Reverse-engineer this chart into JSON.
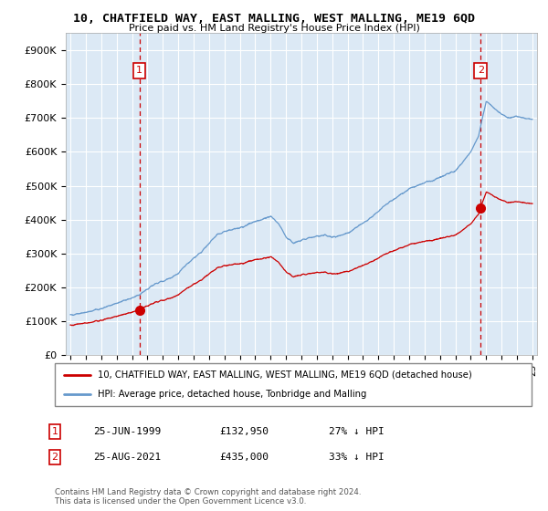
{
  "title": "10, CHATFIELD WAY, EAST MALLING, WEST MALLING, ME19 6QD",
  "subtitle": "Price paid vs. HM Land Registry's House Price Index (HPI)",
  "legend_line1": "10, CHATFIELD WAY, EAST MALLING, WEST MALLING, ME19 6QD (detached house)",
  "legend_line2": "HPI: Average price, detached house, Tonbridge and Malling",
  "annotation1_label": "1",
  "annotation1_date": "25-JUN-1999",
  "annotation1_price": "£132,950",
  "annotation1_hpi": "27% ↓ HPI",
  "annotation2_label": "2",
  "annotation2_date": "25-AUG-2021",
  "annotation2_price": "£435,000",
  "annotation2_hpi": "33% ↓ HPI",
  "footer": "Contains HM Land Registry data © Crown copyright and database right 2024.\nThis data is licensed under the Open Government Licence v3.0.",
  "red_color": "#cc0000",
  "blue_color": "#6699cc",
  "bg_color": "#dce9f5",
  "ylim_min": 0,
  "ylim_max": 950000,
  "yticks": [
    0,
    100000,
    200000,
    300000,
    400000,
    500000,
    600000,
    700000,
    800000,
    900000
  ],
  "ytick_labels": [
    "£0",
    "£100K",
    "£200K",
    "£300K",
    "£400K",
    "£500K",
    "£600K",
    "£700K",
    "£800K",
    "£900K"
  ],
  "sale1_year": 1999.48,
  "sale1_price": 132950,
  "sale2_year": 2021.64,
  "sale2_price": 435000
}
